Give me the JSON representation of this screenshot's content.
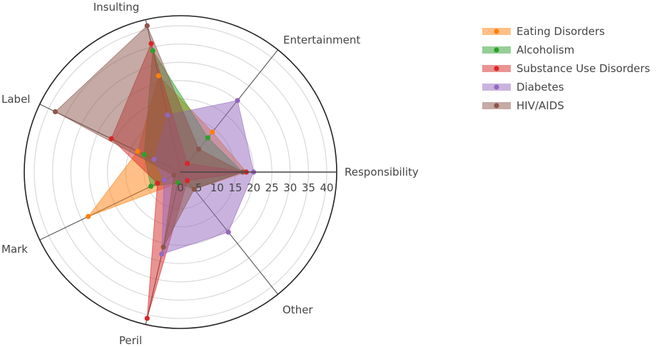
{
  "chart_data": {
    "type": "radar",
    "title": "",
    "axes": [
      "Responsibility",
      "Entertainment",
      "Insulting",
      "Label",
      "Mark",
      "Peril",
      "Other"
    ],
    "radial_range": [
      0,
      40
    ],
    "radial_ticks": [
      "0",
      "5",
      "10",
      "15",
      "20",
      "25",
      "30",
      "35",
      "40"
    ],
    "grid": true,
    "legend_position": "top-right",
    "series": [
      {
        "name": "Eating Disorders",
        "color": "#ff7f0e",
        "values": [
          18,
          14,
          27,
          13,
          28,
          3,
          6
        ]
      },
      {
        "name": "Alcoholism",
        "color": "#2ca02c",
        "values": [
          17,
          12,
          34,
          11,
          9,
          3,
          6
        ]
      },
      {
        "name": "Substance Use Disorders",
        "color": "#d62728",
        "values": [
          18,
          3,
          36,
          21,
          7,
          41,
          3
        ]
      },
      {
        "name": "Diabetes",
        "color": "#9467bd",
        "values": [
          20,
          25,
          16,
          8,
          5,
          23,
          21
        ]
      },
      {
        "name": "HIV/AIDS",
        "color": "#8c564b",
        "values": [
          17,
          8,
          41,
          38,
          2,
          21,
          6
        ]
      }
    ]
  }
}
